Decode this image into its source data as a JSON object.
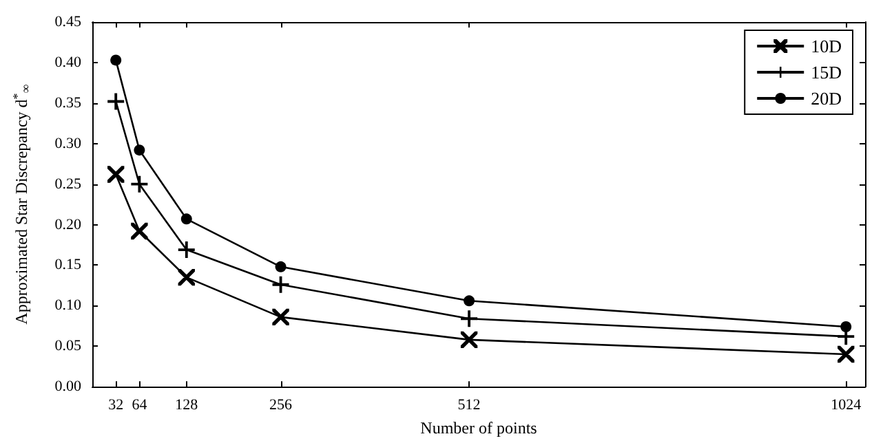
{
  "chart_data": {
    "type": "line",
    "xlabel": "Number of points",
    "ylabel": "Approximated Star Discrepancy d$^{*}$$_{∞}$",
    "x": [
      32,
      64,
      128,
      256,
      512,
      1024
    ],
    "series": [
      {
        "name": "10D",
        "color": "#000000",
        "marker": "x",
        "values": [
          0.262,
          0.192,
          0.135,
          0.086,
          0.058,
          0.04
        ]
      },
      {
        "name": "15D",
        "color": "#000000",
        "marker": "plus",
        "values": [
          0.352,
          0.25,
          0.169,
          0.126,
          0.084,
          0.062
        ]
      },
      {
        "name": "20D",
        "color": "#000000",
        "marker": "circle",
        "values": [
          0.403,
          0.292,
          0.207,
          0.148,
          0.106,
          0.074
        ]
      }
    ],
    "xlim": [
      0,
      1050
    ],
    "xticks": [
      32,
      64,
      128,
      256,
      512,
      1024
    ],
    "ylim": [
      0,
      0.45
    ],
    "yticks": [
      {
        "value": 0,
        "label": "0.00"
      },
      {
        "value": 0.05,
        "label": "0.05"
      },
      {
        "value": 0.1,
        "label": "0.10"
      },
      {
        "value": 0.15,
        "label": "0.15"
      },
      {
        "value": 0.2,
        "label": "0.20"
      },
      {
        "value": 0.25,
        "label": "0.25"
      },
      {
        "value": 0.3,
        "label": "0.30"
      },
      {
        "value": 0.35,
        "label": "0.35"
      },
      {
        "value": 0.4,
        "label": "0.40"
      },
      {
        "value": 0.45,
        "label": "0.45"
      }
    ],
    "grid": false,
    "legend": "top right",
    "line_style": "solid"
  }
}
